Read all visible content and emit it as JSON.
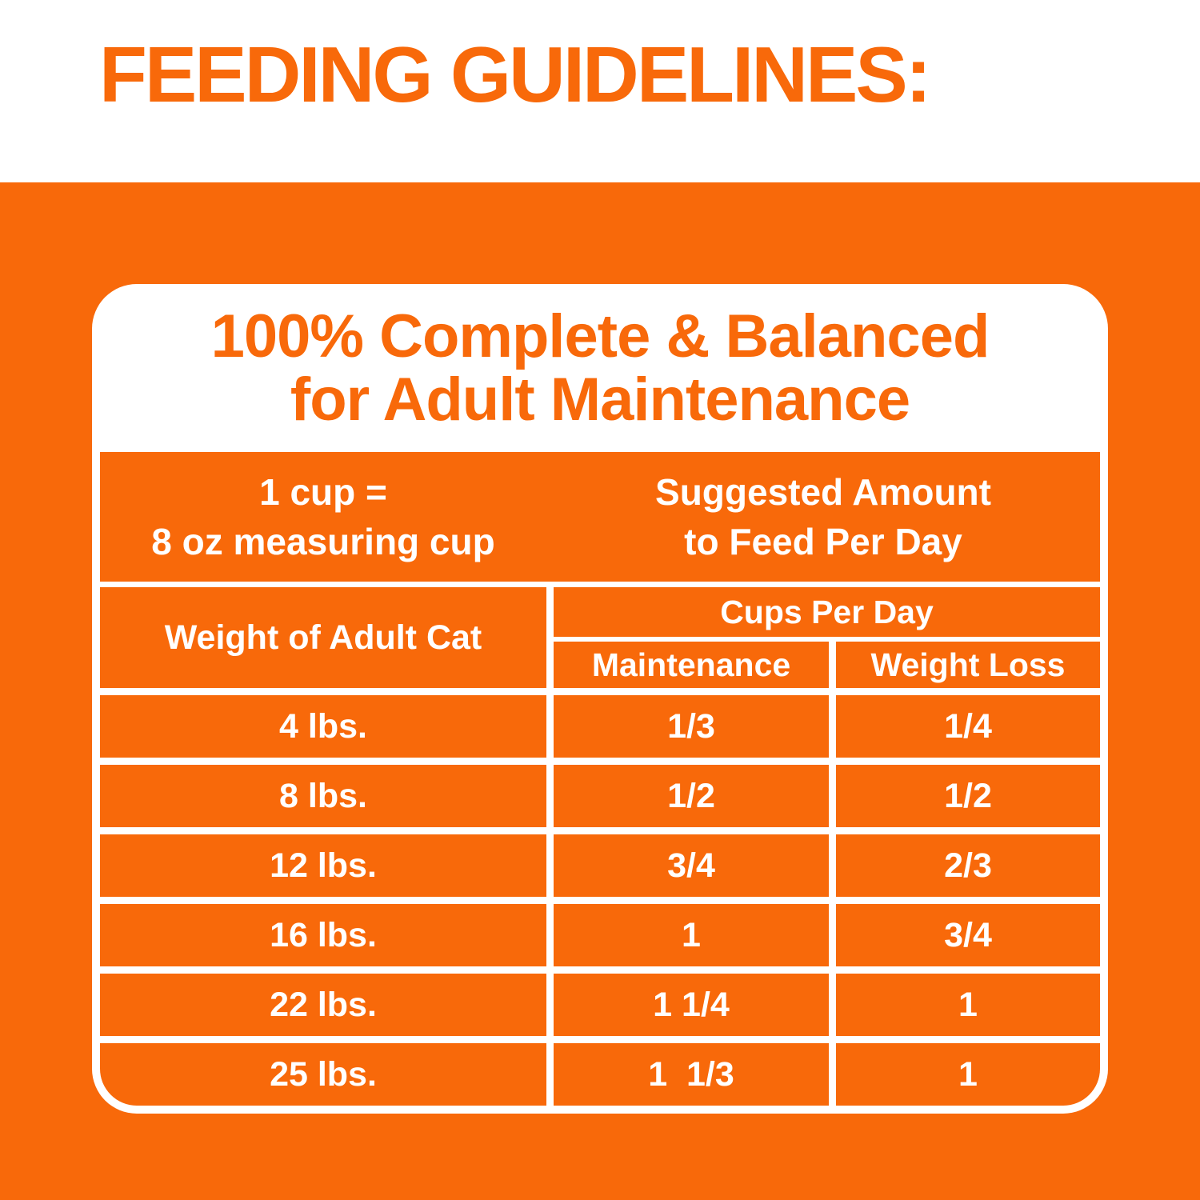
{
  "colors": {
    "orange": "#F8690A",
    "white": "#FFFFFF"
  },
  "header": {
    "title": "FEEDING GUIDELINES:"
  },
  "card": {
    "title_line1": "100% Complete & Balanced",
    "title_line2": "for Adult Maintenance",
    "measure_note": {
      "line1": "1 cup =",
      "line2": "8 oz measuring cup"
    },
    "suggested": {
      "line1": "Suggested Amount",
      "line2": "to Feed Per Day"
    },
    "table": {
      "weight_column_header": "Weight of Adult Cat",
      "cups_group_header": "Cups Per Day",
      "maintenance_header": "Maintenance",
      "weight_loss_header": "Weight Loss",
      "rows": [
        {
          "weight": "4 lbs.",
          "maintenance": "1/3",
          "weight_loss": "1/4"
        },
        {
          "weight": "8 lbs.",
          "maintenance": "1/2",
          "weight_loss": "1/2"
        },
        {
          "weight": "12 lbs.",
          "maintenance": "3/4",
          "weight_loss": "2/3"
        },
        {
          "weight": "16 lbs.",
          "maintenance": "1",
          "weight_loss": "3/4"
        },
        {
          "weight": "22 lbs.",
          "maintenance": "1 1/4",
          "weight_loss": "1"
        },
        {
          "weight": "25 lbs.",
          "maintenance": "1  1/3",
          "weight_loss": "1"
        }
      ]
    }
  }
}
